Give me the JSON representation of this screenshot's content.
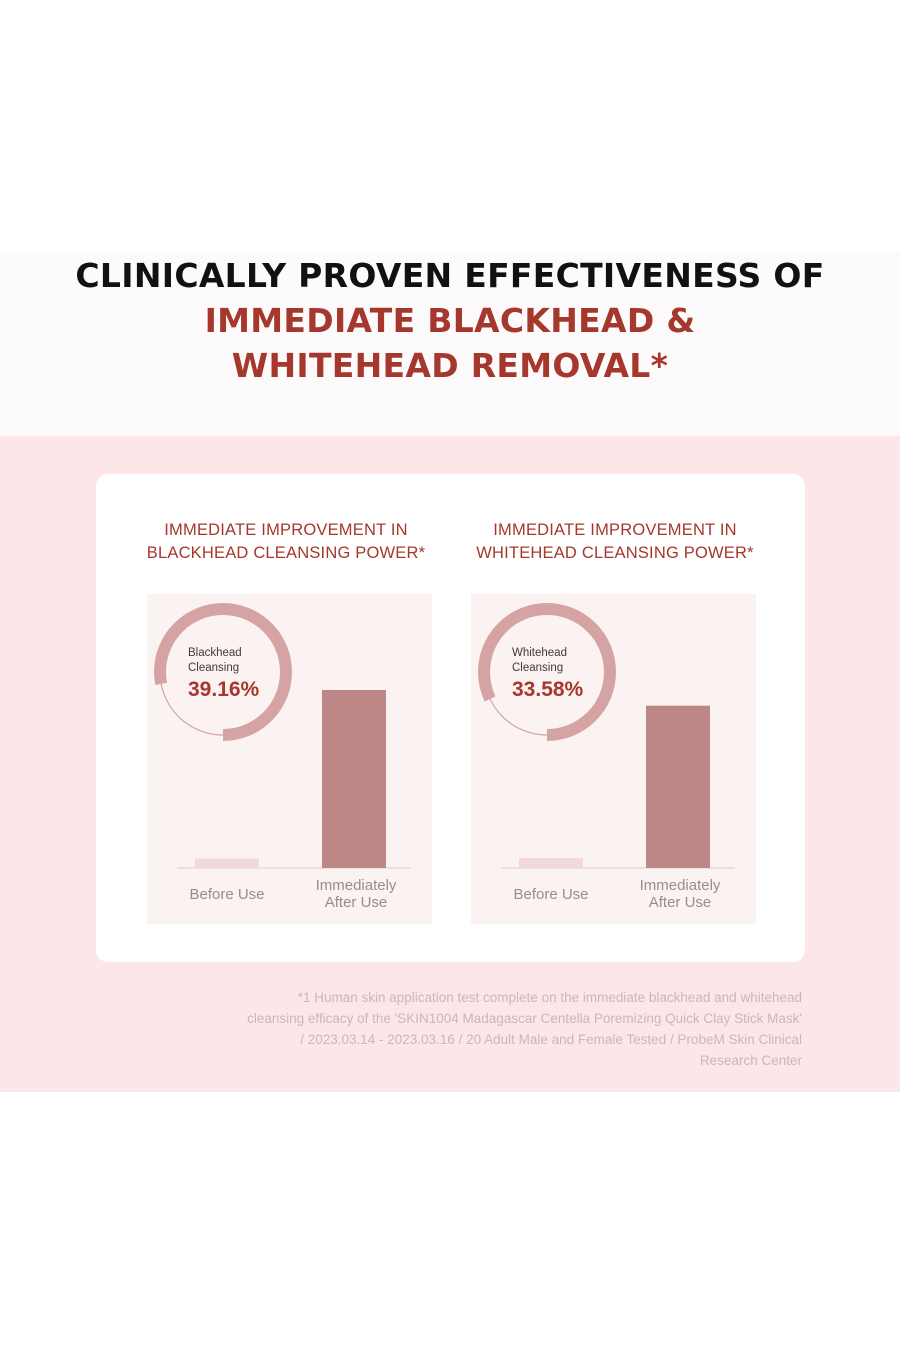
{
  "headline": {
    "line1": "CLINICALLY PROVEN EFFECTIVENESS OF",
    "line2": "IMMEDIATE BLACKHEAD &",
    "line3": "WHITEHEAD REMOVAL*"
  },
  "colors": {
    "accent": "#a5372c",
    "bar_after": "#bc8786",
    "bar_before": "#f0d8db",
    "ring": "#d6a3a5",
    "pink_bg": "#fde6e7",
    "plot_bg": "#faf3f2"
  },
  "chart_data": [
    {
      "type": "bar",
      "title_lines": [
        "IMMEDIATE IMPROVEMENT IN",
        "BLACKHEAD CLEANSING POWER*"
      ],
      "categories": [
        [
          "Before Use"
        ],
        [
          "Immediately",
          "After Use"
        ]
      ],
      "values": [
        5.2,
        100
      ],
      "ring": {
        "caption_lines": [
          "Blackhead",
          "Cleansing"
        ],
        "value_text": "39.16%",
        "percent": 39.16,
        "progress": 0.78
      }
    },
    {
      "type": "bar",
      "title_lines": [
        "IMMEDIATE IMPROVEMENT IN",
        "WHITEHEAD CLEANSING POWER*"
      ],
      "categories": [
        [
          "Before Use"
        ],
        [
          "Immediately",
          "After Use"
        ]
      ],
      "values": [
        5.6,
        91.2
      ],
      "ring": {
        "caption_lines": [
          "Whitehead",
          "Cleansing"
        ],
        "value_text": "33.58%",
        "percent": 33.58,
        "progress": 0.82
      }
    }
  ],
  "footnote": {
    "lines": [
      "*1 Human skin application test complete on the immediate blackhead and whitehead",
      "cleansing efficacy of the 'SKIN1004 Madagascar Centella Poremizing Quick Clay Stick Mask'",
      "/ 2023.03.14 - 2023.03.16 / 20 Adult Male and Female Tested / ProbeM Skin Clinical",
      "Research Center"
    ]
  }
}
